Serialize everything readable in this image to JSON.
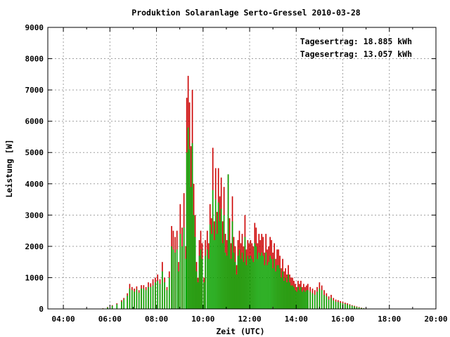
{
  "chart_data": {
    "type": "bar",
    "title": "Produktion Solaranlage Serto-Gressel 2010-03-28",
    "xlabel": "Zeit (UTC)",
    "ylabel": "Leistung [W]",
    "xlim": [
      3.333,
      20.0
    ],
    "ylim": [
      0,
      9000
    ],
    "grid": true,
    "x_ticks": [
      {
        "value": 4,
        "label": "04:00"
      },
      {
        "value": 6,
        "label": "06:00"
      },
      {
        "value": 8,
        "label": "08:00"
      },
      {
        "value": 10,
        "label": "10:00"
      },
      {
        "value": 12,
        "label": "12:00"
      },
      {
        "value": 14,
        "label": "14:00"
      },
      {
        "value": 16,
        "label": "16:00"
      },
      {
        "value": 18,
        "label": "18:00"
      },
      {
        "value": 20,
        "label": "20:00"
      }
    ],
    "y_ticks": [
      0,
      1000,
      2000,
      3000,
      4000,
      5000,
      6000,
      7000,
      8000,
      9000
    ],
    "legend_placement": "top-right",
    "series": [
      {
        "name": "Tagesertrag: 18.885 kWh",
        "color": "#cc0000",
        "points": [
          [
            5.1,
            10
          ],
          [
            5.7,
            20
          ],
          [
            5.9,
            60
          ],
          [
            6.1,
            120
          ],
          [
            6.3,
            180
          ],
          [
            6.5,
            280
          ],
          [
            6.6,
            350
          ],
          [
            6.75,
            500
          ],
          [
            6.85,
            800
          ],
          [
            6.95,
            700
          ],
          [
            7.05,
            650
          ],
          [
            7.15,
            720
          ],
          [
            7.25,
            600
          ],
          [
            7.35,
            760
          ],
          [
            7.45,
            760
          ],
          [
            7.55,
            700
          ],
          [
            7.65,
            850
          ],
          [
            7.75,
            820
          ],
          [
            7.85,
            950
          ],
          [
            7.95,
            1000
          ],
          [
            8.05,
            1100
          ],
          [
            8.15,
            950
          ],
          [
            8.25,
            1500
          ],
          [
            8.35,
            1000
          ],
          [
            8.45,
            700
          ],
          [
            8.55,
            1200
          ],
          [
            8.65,
            2650
          ],
          [
            8.72,
            2500
          ],
          [
            8.8,
            2300
          ],
          [
            8.88,
            2500
          ],
          [
            8.95,
            1500
          ],
          [
            9.02,
            3350
          ],
          [
            9.1,
            2600
          ],
          [
            9.18,
            3700
          ],
          [
            9.26,
            2000
          ],
          [
            9.3,
            6750
          ],
          [
            9.36,
            7450
          ],
          [
            9.42,
            6600
          ],
          [
            9.48,
            5200
          ],
          [
            9.54,
            7000
          ],
          [
            9.6,
            4000
          ],
          [
            9.66,
            3000
          ],
          [
            9.72,
            1500
          ],
          [
            9.78,
            1000
          ],
          [
            9.84,
            2200
          ],
          [
            9.9,
            2500
          ],
          [
            9.96,
            2100
          ],
          [
            10.04,
            1000
          ],
          [
            10.1,
            2200
          ],
          [
            10.18,
            2500
          ],
          [
            10.24,
            2100
          ],
          [
            10.3,
            3350
          ],
          [
            10.36,
            2900
          ],
          [
            10.42,
            5150
          ],
          [
            10.48,
            2800
          ],
          [
            10.54,
            4500
          ],
          [
            10.6,
            3100
          ],
          [
            10.66,
            4500
          ],
          [
            10.72,
            3600
          ],
          [
            10.78,
            4200
          ],
          [
            10.84,
            2800
          ],
          [
            10.9,
            3900
          ],
          [
            10.96,
            2400
          ],
          [
            11.02,
            2200
          ],
          [
            11.08,
            4300
          ],
          [
            11.14,
            2900
          ],
          [
            11.2,
            2100
          ],
          [
            11.26,
            3600
          ],
          [
            11.32,
            2300
          ],
          [
            11.38,
            2000
          ],
          [
            11.44,
            1400
          ],
          [
            11.5,
            2200
          ],
          [
            11.56,
            2500
          ],
          [
            11.62,
            2100
          ],
          [
            11.68,
            2400
          ],
          [
            11.74,
            2000
          ],
          [
            11.8,
            3000
          ],
          [
            11.86,
            1900
          ],
          [
            11.92,
            2200
          ],
          [
            11.98,
            2100
          ],
          [
            12.04,
            2200
          ],
          [
            12.1,
            2100
          ],
          [
            12.16,
            2000
          ],
          [
            12.22,
            2750
          ],
          [
            12.28,
            2600
          ],
          [
            12.34,
            2100
          ],
          [
            12.4,
            2400
          ],
          [
            12.46,
            2200
          ],
          [
            12.52,
            2400
          ],
          [
            12.58,
            2300
          ],
          [
            12.64,
            1800
          ],
          [
            12.7,
            2400
          ],
          [
            12.76,
            1900
          ],
          [
            12.82,
            2000
          ],
          [
            12.88,
            2300
          ],
          [
            12.94,
            2200
          ],
          [
            13.0,
            1800
          ],
          [
            13.06,
            2100
          ],
          [
            13.12,
            1600
          ],
          [
            13.18,
            1900
          ],
          [
            13.24,
            1900
          ],
          [
            13.3,
            1700
          ],
          [
            13.36,
            1300
          ],
          [
            13.42,
            1600
          ],
          [
            13.48,
            1200
          ],
          [
            13.54,
            1300
          ],
          [
            13.6,
            1100
          ],
          [
            13.66,
            1400
          ],
          [
            13.72,
            1100
          ],
          [
            13.78,
            1000
          ],
          [
            13.84,
            1000
          ],
          [
            13.9,
            900
          ],
          [
            13.96,
            800
          ],
          [
            14.02,
            700
          ],
          [
            14.08,
            900
          ],
          [
            14.14,
            800
          ],
          [
            14.2,
            900
          ],
          [
            14.26,
            700
          ],
          [
            14.32,
            800
          ],
          [
            14.38,
            700
          ],
          [
            14.44,
            750
          ],
          [
            14.5,
            800
          ],
          [
            14.6,
            700
          ],
          [
            14.7,
            650
          ],
          [
            14.8,
            600
          ],
          [
            14.9,
            700
          ],
          [
            15.0,
            850
          ],
          [
            15.1,
            750
          ],
          [
            15.2,
            600
          ],
          [
            15.3,
            500
          ],
          [
            15.4,
            400
          ],
          [
            15.5,
            450
          ],
          [
            15.6,
            350
          ],
          [
            15.7,
            300
          ],
          [
            15.8,
            280
          ],
          [
            15.9,
            250
          ],
          [
            16.0,
            230
          ],
          [
            16.1,
            200
          ],
          [
            16.2,
            180
          ],
          [
            16.3,
            150
          ],
          [
            16.4,
            120
          ],
          [
            16.5,
            100
          ],
          [
            16.6,
            80
          ],
          [
            16.7,
            60
          ],
          [
            16.8,
            40
          ],
          [
            16.9,
            25
          ],
          [
            17.0,
            15
          ],
          [
            17.1,
            5
          ]
        ]
      },
      {
        "name": "Tagesertrag: 13.057 kWh",
        "color": "#00aa00",
        "points": [
          [
            5.1,
            5
          ],
          [
            5.7,
            15
          ],
          [
            5.9,
            50
          ],
          [
            6.1,
            100
          ],
          [
            6.3,
            150
          ],
          [
            6.5,
            230
          ],
          [
            6.6,
            300
          ],
          [
            6.75,
            420
          ],
          [
            6.85,
            650
          ],
          [
            6.95,
            600
          ],
          [
            7.05,
            550
          ],
          [
            7.15,
            620
          ],
          [
            7.25,
            520
          ],
          [
            7.35,
            650
          ],
          [
            7.45,
            650
          ],
          [
            7.55,
            600
          ],
          [
            7.65,
            700
          ],
          [
            7.75,
            700
          ],
          [
            7.85,
            750
          ],
          [
            7.95,
            850
          ],
          [
            8.05,
            900
          ],
          [
            8.15,
            800
          ],
          [
            8.25,
            1200
          ],
          [
            8.35,
            850
          ],
          [
            8.45,
            600
          ],
          [
            8.55,
            1000
          ],
          [
            8.65,
            2000
          ],
          [
            8.72,
            1900
          ],
          [
            8.8,
            1800
          ],
          [
            8.88,
            1900
          ],
          [
            8.95,
            1200
          ],
          [
            9.02,
            2400
          ],
          [
            9.1,
            2000
          ],
          [
            9.18,
            2600
          ],
          [
            9.26,
            1600
          ],
          [
            9.3,
            5000
          ],
          [
            9.36,
            5800
          ],
          [
            9.42,
            5100
          ],
          [
            9.48,
            3900
          ],
          [
            9.54,
            5300
          ],
          [
            9.6,
            3000
          ],
          [
            9.66,
            2300
          ],
          [
            9.72,
            1200
          ],
          [
            9.78,
            850
          ],
          [
            9.84,
            1700
          ],
          [
            9.9,
            1900
          ],
          [
            9.96,
            1600
          ],
          [
            10.04,
            850
          ],
          [
            10.1,
            1700
          ],
          [
            10.18,
            1900
          ],
          [
            10.24,
            1600
          ],
          [
            10.3,
            2700
          ],
          [
            10.36,
            2400
          ],
          [
            10.42,
            3800
          ],
          [
            10.48,
            2200
          ],
          [
            10.54,
            3500
          ],
          [
            10.6,
            2400
          ],
          [
            10.66,
            3400
          ],
          [
            10.72,
            2800
          ],
          [
            10.78,
            3200
          ],
          [
            10.84,
            2100
          ],
          [
            10.9,
            3000
          ],
          [
            10.96,
            1800
          ],
          [
            11.02,
            1700
          ],
          [
            11.08,
            4300
          ],
          [
            11.14,
            2200
          ],
          [
            11.2,
            1600
          ],
          [
            11.26,
            2800
          ],
          [
            11.32,
            1800
          ],
          [
            11.38,
            1500
          ],
          [
            11.44,
            1100
          ],
          [
            11.5,
            1700
          ],
          [
            11.56,
            1900
          ],
          [
            11.62,
            1600
          ],
          [
            11.68,
            1800
          ],
          [
            11.74,
            1500
          ],
          [
            11.8,
            2300
          ],
          [
            11.86,
            1400
          ],
          [
            11.92,
            1700
          ],
          [
            11.98,
            1600
          ],
          [
            12.04,
            1700
          ],
          [
            12.1,
            1600
          ],
          [
            12.16,
            1500
          ],
          [
            12.22,
            2100
          ],
          [
            12.28,
            2000
          ],
          [
            12.34,
            1600
          ],
          [
            12.4,
            1800
          ],
          [
            12.46,
            1700
          ],
          [
            12.52,
            1800
          ],
          [
            12.58,
            1700
          ],
          [
            12.64,
            1400
          ],
          [
            12.7,
            1800
          ],
          [
            12.76,
            1400
          ],
          [
            12.82,
            1500
          ],
          [
            12.88,
            1700
          ],
          [
            12.94,
            1600
          ],
          [
            13.0,
            1300
          ],
          [
            13.06,
            1600
          ],
          [
            13.12,
            1200
          ],
          [
            13.18,
            1400
          ],
          [
            13.24,
            1400
          ],
          [
            13.3,
            1300
          ],
          [
            13.36,
            1000
          ],
          [
            13.42,
            1200
          ],
          [
            13.48,
            900
          ],
          [
            13.54,
            1000
          ],
          [
            13.6,
            850
          ],
          [
            13.66,
            1100
          ],
          [
            13.72,
            850
          ],
          [
            13.78,
            750
          ],
          [
            13.84,
            750
          ],
          [
            13.9,
            700
          ],
          [
            13.96,
            600
          ],
          [
            14.02,
            550
          ],
          [
            14.08,
            700
          ],
          [
            14.14,
            600
          ],
          [
            14.2,
            700
          ],
          [
            14.26,
            550
          ],
          [
            14.32,
            600
          ],
          [
            14.38,
            550
          ],
          [
            14.44,
            600
          ],
          [
            14.5,
            600
          ],
          [
            14.6,
            550
          ],
          [
            14.7,
            500
          ],
          [
            14.8,
            450
          ],
          [
            14.9,
            550
          ],
          [
            15.0,
            650
          ],
          [
            15.1,
            600
          ],
          [
            15.2,
            450
          ],
          [
            15.3,
            400
          ],
          [
            15.4,
            300
          ],
          [
            15.5,
            350
          ],
          [
            15.6,
            270
          ],
          [
            15.7,
            230
          ],
          [
            15.8,
            220
          ],
          [
            15.9,
            200
          ],
          [
            16.0,
            180
          ],
          [
            16.1,
            160
          ],
          [
            16.2,
            140
          ],
          [
            16.3,
            120
          ],
          [
            16.4,
            100
          ],
          [
            16.5,
            80
          ],
          [
            16.6,
            60
          ],
          [
            16.7,
            45
          ],
          [
            16.8,
            30
          ],
          [
            16.9,
            20
          ],
          [
            17.0,
            10
          ],
          [
            17.1,
            5
          ]
        ]
      }
    ]
  }
}
